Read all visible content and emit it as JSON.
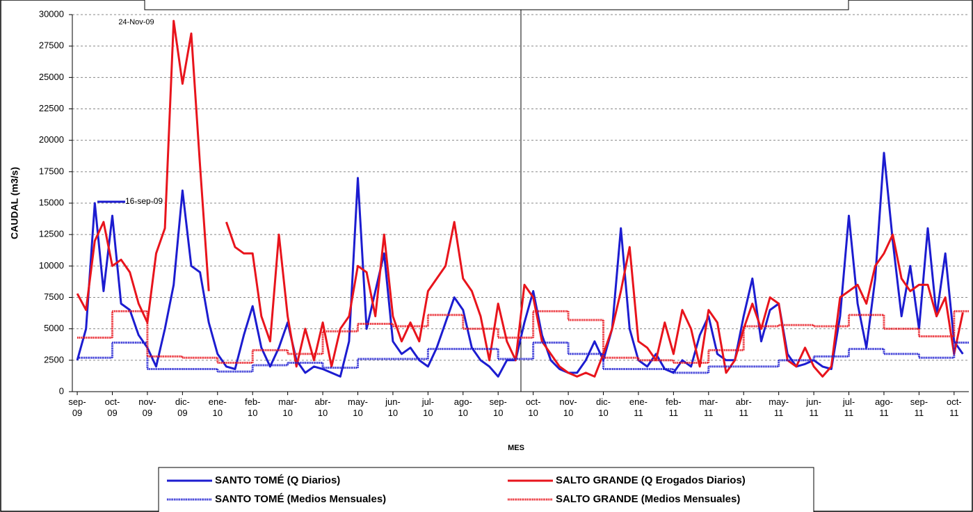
{
  "chart_data": {
    "type": "line",
    "y_label": "CAUDAL (m3/s)",
    "x_label": "MES",
    "ylim": [
      0,
      30000
    ],
    "yticks": [
      0,
      2500,
      5000,
      7500,
      10000,
      12500,
      15000,
      17500,
      20000,
      22500,
      25000,
      27500,
      30000
    ],
    "xlim": [
      -0.14,
      25.42
    ],
    "xticks": [
      {
        "value": 0,
        "label": "sep-\n09"
      },
      {
        "value": 1,
        "label": "oct-\n09"
      },
      {
        "value": 2,
        "label": "nov-\n09"
      },
      {
        "value": 3,
        "label": "dic-\n09"
      },
      {
        "value": 4,
        "label": "ene-\n10"
      },
      {
        "value": 5,
        "label": "feb-\n10"
      },
      {
        "value": 6,
        "label": "mar-\n10"
      },
      {
        "value": 7,
        "label": "abr-\n10"
      },
      {
        "value": 8,
        "label": "may-\n10"
      },
      {
        "value": 9,
        "label": "jun-\n10"
      },
      {
        "value": 10,
        "label": "jul-\n10"
      },
      {
        "value": 11,
        "label": "ago-\n10"
      },
      {
        "value": 12,
        "label": "sep-\n10"
      },
      {
        "value": 13,
        "label": "oct-\n10"
      },
      {
        "value": 14,
        "label": "nov-\n10"
      },
      {
        "value": 15,
        "label": "dic-\n10"
      },
      {
        "value": 16,
        "label": "ene-\n11"
      },
      {
        "value": 17,
        "label": "feb-\n11"
      },
      {
        "value": 18,
        "label": "mar-\n11"
      },
      {
        "value": 19,
        "label": "abr-\n11"
      },
      {
        "value": 20,
        "label": "may-\n11"
      },
      {
        "value": 21,
        "label": "jun-\n11"
      },
      {
        "value": 22,
        "label": "jul-\n11"
      },
      {
        "value": 23,
        "label": "ago-\n11"
      },
      {
        "value": 24,
        "label": "sep-\n11"
      },
      {
        "value": 25,
        "label": "oct-\n11"
      }
    ],
    "grid": true,
    "annotations": [
      {
        "text": "24-Nov-09"
      },
      {
        "text": "16-sep-09"
      }
    ],
    "x": [
      0,
      0.25,
      0.5,
      0.75,
      1,
      1.25,
      1.5,
      1.75,
      2,
      2.25,
      2.5,
      2.75,
      3,
      3.25,
      3.5,
      3.75,
      4,
      4.25,
      4.5,
      4.75,
      5,
      5.25,
      5.5,
      5.75,
      6,
      6.25,
      6.5,
      6.75,
      7,
      7.25,
      7.5,
      7.75,
      8,
      8.25,
      8.5,
      8.75,
      9,
      9.25,
      9.5,
      9.75,
      10,
      10.25,
      10.5,
      10.75,
      11,
      11.25,
      11.5,
      11.75,
      12,
      12.25,
      12.5,
      12.75,
      13,
      13.25,
      13.5,
      13.75,
      14,
      14.25,
      14.5,
      14.75,
      15,
      15.25,
      15.5,
      15.75,
      16,
      16.25,
      16.5,
      16.75,
      17,
      17.25,
      17.5,
      17.75,
      18,
      18.25,
      18.5,
      18.75,
      19,
      19.25,
      19.5,
      19.75,
      20,
      20.25,
      20.5,
      20.75,
      21,
      21.25,
      21.5,
      21.75,
      22,
      22.25,
      22.5,
      22.75,
      23,
      23.25,
      23.5,
      23.75,
      24,
      24.25,
      24.5,
      24.75,
      25,
      25.25
    ],
    "series": [
      {
        "name": "SANTO TOMÉ (Q Diarios)",
        "color": "#1c1cd0",
        "linestyle": "solid",
        "values": [
          2500,
          5000,
          15000,
          8000,
          14000,
          7000,
          6500,
          4500,
          3500,
          2000,
          5000,
          8500,
          16000,
          10000,
          9500,
          5500,
          3000,
          2000,
          1800,
          4500,
          6800,
          3500,
          2000,
          3500,
          5500,
          2500,
          1500,
          2000,
          1800,
          1500,
          1200,
          4000,
          17000,
          5000,
          8000,
          11000,
          4000,
          3000,
          3500,
          2500,
          2000,
          3500,
          5500,
          7500,
          6500,
          3500,
          2500,
          2000,
          1200,
          2500,
          2500,
          5500,
          8000,
          4500,
          2500,
          1800,
          1500,
          1500,
          2500,
          4000,
          2500,
          5000,
          13000,
          5000,
          2500,
          2000,
          3000,
          1800,
          1500,
          2500,
          2000,
          4500,
          6000,
          3000,
          2500,
          2500,
          6000,
          9000,
          4000,
          6500,
          7000,
          3000,
          2000,
          2200,
          2500,
          2000,
          1800,
          6000,
          14000,
          7000,
          3500,
          9000,
          19000,
          12000,
          6000,
          10000,
          5000,
          13000,
          6000,
          11000,
          4000,
          3000
        ]
      },
      {
        "name": "SALTO GRANDE (Q Erogados Diarios)",
        "color": "#e8141c",
        "linestyle": "solid",
        "values": [
          7800,
          6500,
          12000,
          13500,
          10000,
          10500,
          9500,
          7000,
          5500,
          11000,
          13000,
          29500,
          24500,
          28500,
          18000,
          8000,
          null,
          13500,
          11500,
          11000,
          11000,
          6000,
          4000,
          12500,
          6000,
          2000,
          5000,
          2500,
          5500,
          2000,
          5000,
          6000,
          10000,
          9500,
          6000,
          12500,
          6000,
          4000,
          5500,
          4000,
          8000,
          9000,
          10000,
          13500,
          9000,
          8000,
          6000,
          2500,
          7000,
          4000,
          2500,
          8500,
          7500,
          4000,
          3000,
          2000,
          1500,
          1200,
          1500,
          1200,
          3000,
          5000,
          8000,
          11500,
          4000,
          3500,
          2500,
          5500,
          3000,
          6500,
          5000,
          2000,
          6500,
          5500,
          1500,
          2500,
          5000,
          7000,
          5000,
          7500,
          7000,
          2500,
          2000,
          3500,
          2000,
          1200,
          2000,
          7500,
          8000,
          8500,
          7000,
          10000,
          11000,
          12500,
          9000,
          8000,
          8500,
          8500,
          6000,
          7500,
          3000,
          6300
        ]
      },
      {
        "name": "SANTO TOMÉ (Medios Mensuales)",
        "color": "#1c1cd0",
        "linestyle": "dotted",
        "drawstyle": "steps-post",
        "x": [
          0,
          1,
          2,
          3,
          4,
          5,
          6,
          7,
          8,
          9,
          10,
          11,
          12,
          13,
          14,
          15,
          16,
          17,
          18,
          19,
          20,
          21,
          22,
          23,
          24,
          25
        ],
        "values": [
          2700,
          3900,
          1800,
          1800,
          1600,
          2100,
          2300,
          1900,
          2600,
          2600,
          3400,
          3400,
          2600,
          3900,
          3000,
          1800,
          1800,
          1500,
          2000,
          2000,
          2500,
          2800,
          3400,
          3000,
          2700,
          3900
        ]
      },
      {
        "name": "SALTO GRANDE (Medios Mensuales)",
        "color": "#e8141c",
        "linestyle": "dotted",
        "drawstyle": "steps-post",
        "x": [
          0,
          1,
          2,
          3,
          4,
          5,
          6,
          7,
          8,
          9,
          10,
          11,
          12,
          13,
          14,
          15,
          16,
          17,
          18,
          19,
          20,
          21,
          22,
          23,
          24,
          25
        ],
        "values": [
          4300,
          6400,
          2800,
          2700,
          2300,
          3300,
          3000,
          4800,
          5400,
          5200,
          6100,
          5000,
          4300,
          6400,
          5700,
          2700,
          2500,
          2300,
          3300,
          5200,
          5300,
          5200,
          6100,
          5000,
          4400,
          6400
        ]
      }
    ]
  }
}
